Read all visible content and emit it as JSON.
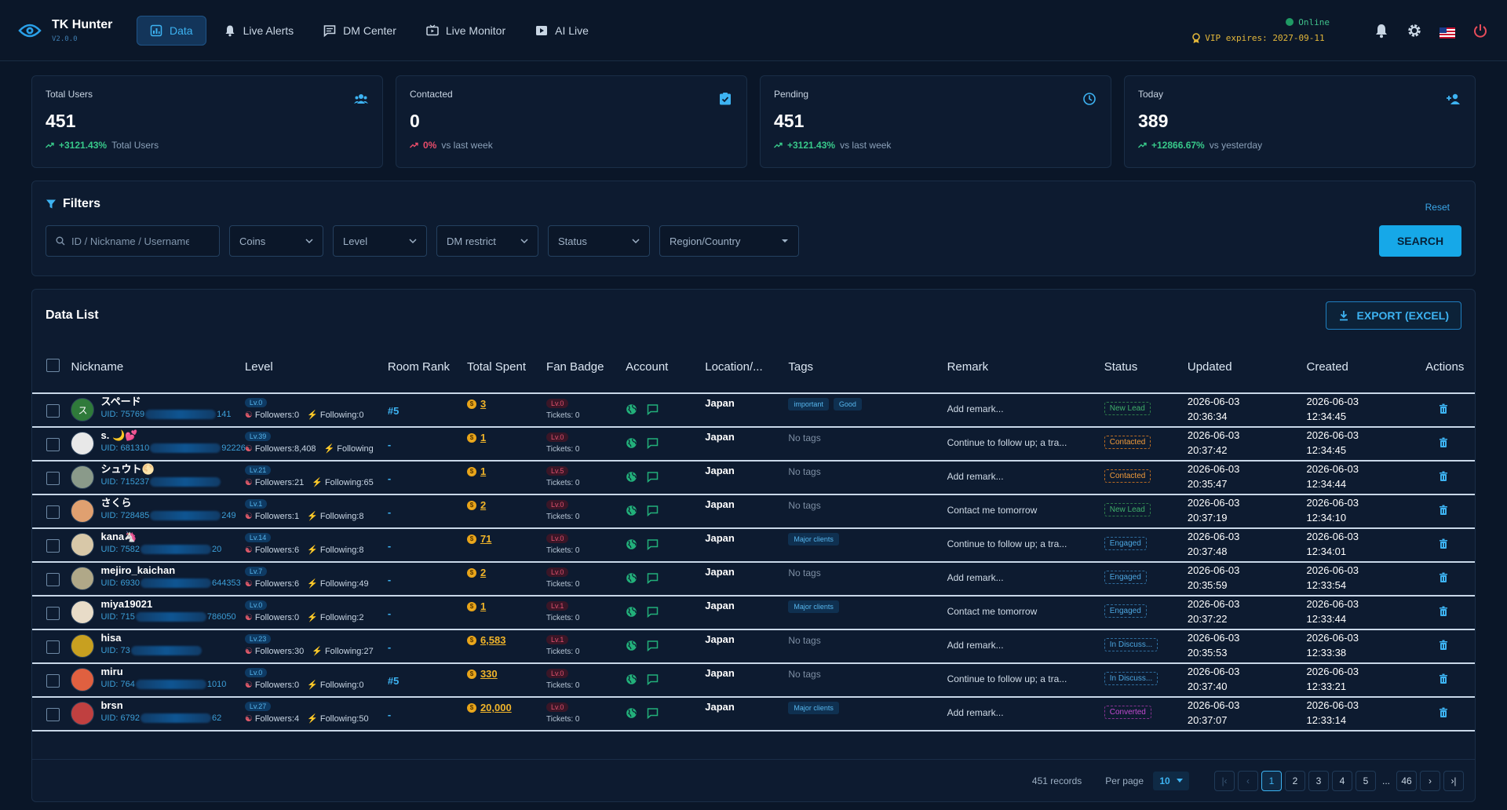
{
  "app": {
    "title": "TK Hunter",
    "version": "V2.0.0"
  },
  "nav": [
    {
      "label": "Data",
      "icon": "chart-icon",
      "active": true
    },
    {
      "label": "Live Alerts",
      "icon": "bell-icon"
    },
    {
      "label": "DM Center",
      "icon": "message-icon"
    },
    {
      "label": "Live Monitor",
      "icon": "tv-icon"
    },
    {
      "label": "AI Live",
      "icon": "play-icon"
    }
  ],
  "status": {
    "online": "Online",
    "vip": "VIP expires: 2027-09-11"
  },
  "stats": [
    {
      "label": "Total Users",
      "value": "451",
      "pct": "+3121.43%",
      "note": "Total Users",
      "trend": "up",
      "icon": "users-icon"
    },
    {
      "label": "Contacted",
      "value": "0",
      "pct": "0%",
      "note": "vs last week",
      "trend": "down",
      "icon": "clipboard-check-icon"
    },
    {
      "label": "Pending",
      "value": "451",
      "pct": "+3121.43%",
      "note": "vs last week",
      "trend": "up",
      "icon": "clock-icon"
    },
    {
      "label": "Today",
      "value": "389",
      "pct": "+12866.67%",
      "note": "vs yesterday",
      "trend": "up",
      "icon": "person-add-icon"
    }
  ],
  "filters": {
    "title": "Filters",
    "reset": "Reset",
    "search_placeholder": "ID / Nickname / Username",
    "selects": [
      "Coins",
      "Level",
      "DM restrict",
      "Status",
      "Region/Country"
    ],
    "search_button": "SEARCH"
  },
  "datalist": {
    "title": "Data List",
    "export": "EXPORT (EXCEL)",
    "columns": [
      "Nickname",
      "Level",
      "Room Rank",
      "Total Spent",
      "Fan Badge",
      "Account",
      "Location/...",
      "Tags",
      "Remark",
      "Status",
      "Updated",
      "Created",
      "Actions"
    ],
    "rows": [
      {
        "nick": "スペード",
        "uid_a": "UID: 75769",
        "uid_b": "141",
        "lv": "Lv.0",
        "followers": "Followers:0",
        "following": "Following:0",
        "rank": "#5",
        "spent": "3",
        "fan": "Lv.0",
        "tickets": "Tickets: 0",
        "loc": "Japan",
        "tags": [
          "important",
          "Good"
        ],
        "remark": "Add remark...",
        "status": "New Lead",
        "st": "new",
        "upd1": "2026-06-03",
        "upd2": "20:36:34",
        "cr1": "2026-06-03",
        "cr2": "12:34:45",
        "av": "#2f7a3a",
        "avtext": "ス"
      },
      {
        "nick": "s. 🌙💕",
        "uid_a": "UID: 681310",
        "uid_b": "92226",
        "lv": "Lv.39",
        "followers": "Followers:8,408",
        "following": "Following",
        "rank": "-",
        "spent": "1",
        "fan": "Lv.0",
        "tickets": "Tickets: 0",
        "loc": "Japan",
        "tags": [],
        "remark": "Continue to follow up; a tra...",
        "status": "Contacted",
        "st": "contacted",
        "upd1": "2026-06-03",
        "upd2": "20:37:42",
        "cr1": "2026-06-03",
        "cr2": "12:34:45",
        "av": "#e8e8e8",
        "avtext": ""
      },
      {
        "nick": "シュウト🌕",
        "uid_a": "UID: 715237",
        "uid_b": "",
        "lv": "Lv.21",
        "followers": "Followers:21",
        "following": "Following:65",
        "rank": "-",
        "spent": "1",
        "fan": "Lv.5",
        "tickets": "Tickets: 0",
        "loc": "Japan",
        "tags": [],
        "remark": "Add remark...",
        "status": "Contacted",
        "st": "contacted",
        "upd1": "2026-06-03",
        "upd2": "20:35:47",
        "cr1": "2026-06-03",
        "cr2": "12:34:44",
        "av": "#8a9a8a",
        "avtext": ""
      },
      {
        "nick": "さくら",
        "uid_a": "UID: 728485",
        "uid_b": "249",
        "lv": "Lv.1",
        "followers": "Followers:1",
        "following": "Following:8",
        "rank": "-",
        "spent": "2",
        "fan": "Lv.0",
        "tickets": "Tickets: 0",
        "loc": "Japan",
        "tags": [],
        "remark": "Contact me tomorrow",
        "status": "New Lead",
        "st": "new",
        "upd1": "2026-06-03",
        "upd2": "20:37:19",
        "cr1": "2026-06-03",
        "cr2": "12:34:10",
        "av": "#e0a070",
        "avtext": ""
      },
      {
        "nick": "kana🦄",
        "uid_a": "UID: 7582",
        "uid_b": "20",
        "lv": "Lv.14",
        "followers": "Followers:6",
        "following": "Following:8",
        "rank": "-",
        "spent": "71",
        "fan": "Lv.0",
        "tickets": "Tickets: 0",
        "loc": "Japan",
        "tags": [
          "Major clients"
        ],
        "remark": "Continue to follow up; a tra...",
        "status": "Engaged",
        "st": "engaged",
        "upd1": "2026-06-03",
        "upd2": "20:37:48",
        "cr1": "2026-06-03",
        "cr2": "12:34:01",
        "av": "#d8c8a8",
        "avtext": ""
      },
      {
        "nick": "mejiro_kaichan",
        "uid_a": "UID: 6930",
        "uid_b": "644353",
        "lv": "Lv.7",
        "followers": "Followers:6",
        "following": "Following:49",
        "rank": "-",
        "spent": "2",
        "fan": "Lv.0",
        "tickets": "Tickets: 0",
        "loc": "Japan",
        "tags": [],
        "remark": "Add remark...",
        "status": "Engaged",
        "st": "engaged",
        "upd1": "2026-06-03",
        "upd2": "20:35:59",
        "cr1": "2026-06-03",
        "cr2": "12:33:54",
        "av": "#b0a888",
        "avtext": ""
      },
      {
        "nick": "miya19021",
        "uid_a": "UID: 715",
        "uid_b": "786050",
        "lv": "Lv.0",
        "followers": "Followers:0",
        "following": "Following:2",
        "rank": "-",
        "spent": "1",
        "fan": "Lv.1",
        "tickets": "Tickets: 0",
        "loc": "Japan",
        "tags": [
          "Major clients"
        ],
        "remark": "Contact me tomorrow",
        "status": "Engaged",
        "st": "engaged",
        "upd1": "2026-06-03",
        "upd2": "20:37:22",
        "cr1": "2026-06-03",
        "cr2": "12:33:44",
        "av": "#e8dcc8",
        "avtext": ""
      },
      {
        "nick": "hisa",
        "uid_a": "UID: 73",
        "uid_b": "",
        "lv": "Lv.23",
        "followers": "Followers:30",
        "following": "Following:27",
        "rank": "-",
        "spent": "6,583",
        "fan": "Lv.1",
        "tickets": "Tickets: 0",
        "loc": "Japan",
        "tags": [],
        "remark": "Add remark...",
        "status": "In Discuss...",
        "st": "discuss",
        "upd1": "2026-06-03",
        "upd2": "20:35:53",
        "cr1": "2026-06-03",
        "cr2": "12:33:38",
        "av": "#c8a020",
        "avtext": ""
      },
      {
        "nick": "miru",
        "uid_a": "UID: 764",
        "uid_b": "1010",
        "lv": "Lv.0",
        "followers": "Followers:0",
        "following": "Following:0",
        "rank": "#5",
        "spent": "330",
        "fan": "Lv.0",
        "tickets": "Tickets: 0",
        "loc": "Japan",
        "tags": [],
        "remark": "Continue to follow up; a tra...",
        "status": "In Discuss...",
        "st": "discuss",
        "upd1": "2026-06-03",
        "upd2": "20:37:40",
        "cr1": "2026-06-03",
        "cr2": "12:33:21",
        "av": "#e06040",
        "avtext": ""
      },
      {
        "nick": "brsn",
        "uid_a": "UID: 6792",
        "uid_b": "62",
        "lv": "Lv.27",
        "followers": "Followers:4",
        "following": "Following:50",
        "rank": "-",
        "spent": "20,000",
        "fan": "Lv.0",
        "tickets": "Tickets: 0",
        "loc": "Japan",
        "tags": [
          "Major clients"
        ],
        "remark": "Add remark...",
        "status": "Converted",
        "st": "converted",
        "upd1": "2026-06-03",
        "upd2": "20:37:07",
        "cr1": "2026-06-03",
        "cr2": "12:33:14",
        "av": "#c04040",
        "avtext": ""
      }
    ],
    "no_tags": "No tags"
  },
  "pager": {
    "records": "451 records",
    "per_page_label": "Per page",
    "per_page": "10",
    "pages": [
      "1",
      "2",
      "3",
      "4",
      "5",
      "...",
      "46"
    ],
    "current": "1"
  }
}
